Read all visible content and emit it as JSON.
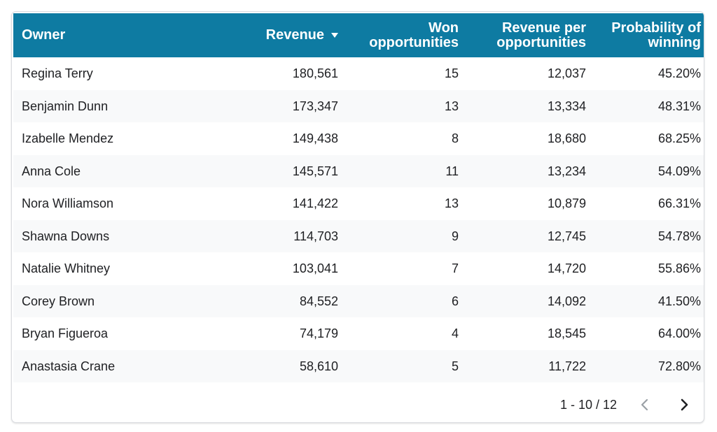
{
  "table": {
    "headers": {
      "owner": "Owner",
      "revenue": "Revenue",
      "won_line1": "Won",
      "won_line2": "opportunities",
      "rpo_line1": "Revenue per",
      "rpo_line2": "opportunities",
      "prob_line1": "Probability of",
      "prob_line2": "winning"
    },
    "sort": {
      "column": "Revenue",
      "direction": "descending",
      "icon": "sort-descending-icon"
    },
    "rows": [
      {
        "owner": "Regina Terry",
        "revenue": "180,561",
        "won": "15",
        "rev_per_opp": "12,037",
        "probability": "45.20%"
      },
      {
        "owner": "Benjamin Dunn",
        "revenue": "173,347",
        "won": "13",
        "rev_per_opp": "13,334",
        "probability": "48.31%"
      },
      {
        "owner": "Izabelle Mendez",
        "revenue": "149,438",
        "won": "8",
        "rev_per_opp": "18,680",
        "probability": "68.25%"
      },
      {
        "owner": "Anna Cole",
        "revenue": "145,571",
        "won": "11",
        "rev_per_opp": "13,234",
        "probability": "54.09%"
      },
      {
        "owner": "Nora Williamson",
        "revenue": "141,422",
        "won": "13",
        "rev_per_opp": "10,879",
        "probability": "66.31%"
      },
      {
        "owner": "Shawna Downs",
        "revenue": "114,703",
        "won": "9",
        "rev_per_opp": "12,745",
        "probability": "54.78%"
      },
      {
        "owner": "Natalie Whitney",
        "revenue": "103,041",
        "won": "7",
        "rev_per_opp": "14,720",
        "probability": "55.86%"
      },
      {
        "owner": "Corey Brown",
        "revenue": "84,552",
        "won": "6",
        "rev_per_opp": "14,092",
        "probability": "41.50%"
      },
      {
        "owner": "Bryan Figueroa",
        "revenue": "74,179",
        "won": "4",
        "rev_per_opp": "18,545",
        "probability": "64.00%"
      },
      {
        "owner": "Anastasia Crane",
        "revenue": "58,610",
        "won": "5",
        "rev_per_opp": "11,722",
        "probability": "72.80%"
      }
    ]
  },
  "pagination": {
    "label": "1 - 10 / 12",
    "prev_icon": "chevron-left-icon",
    "next_icon": "chevron-right-icon",
    "prev_enabled": false,
    "next_enabled": true
  },
  "colors": {
    "header_bg": "#0e7ba2",
    "header_text": "#ffffff",
    "row_alt_bg": "#f8f9fa",
    "text": "#202124",
    "disabled_icon": "#9aa0a6"
  }
}
